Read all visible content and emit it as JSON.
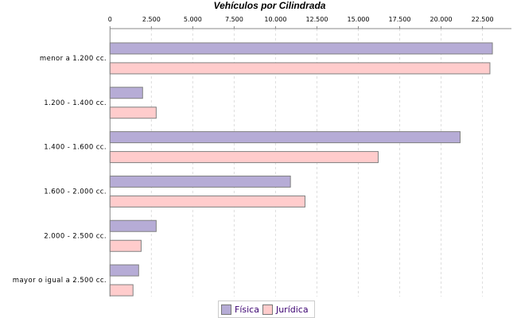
{
  "chart_data": {
    "type": "bar",
    "orientation": "horizontal",
    "title": "Vehículos por Cilindrada",
    "xlabel": "",
    "ylabel": "",
    "categories": [
      "menor a 1.200 cc.",
      "1.200 - 1.400 cc.",
      "1.400 - 1.600 cc.",
      "1.600 - 2.000 cc.",
      "2.000 - 2.500 cc.",
      "mayor o igual a 2.500 cc."
    ],
    "series": [
      {
        "name": "Física",
        "color": "#b6acd6",
        "values": [
          23100,
          1970,
          21150,
          10900,
          2790,
          1730
        ]
      },
      {
        "name": "Jurídica",
        "color": "#ffcccc",
        "values": [
          22950,
          2790,
          16200,
          11780,
          1880,
          1390
        ]
      }
    ],
    "value_axis_position": "top",
    "xlim": [
      0,
      24250
    ],
    "ticks": [
      0,
      2500,
      5000,
      7500,
      10000,
      12500,
      15000,
      17500,
      20000,
      22500
    ],
    "tick_labels": [
      "0",
      "2.500",
      "5.000",
      "7.500",
      "10.000",
      "12.500",
      "15.000",
      "17.500",
      "20.000",
      "22.500"
    ],
    "grid": true,
    "legend_position": "bottom"
  }
}
